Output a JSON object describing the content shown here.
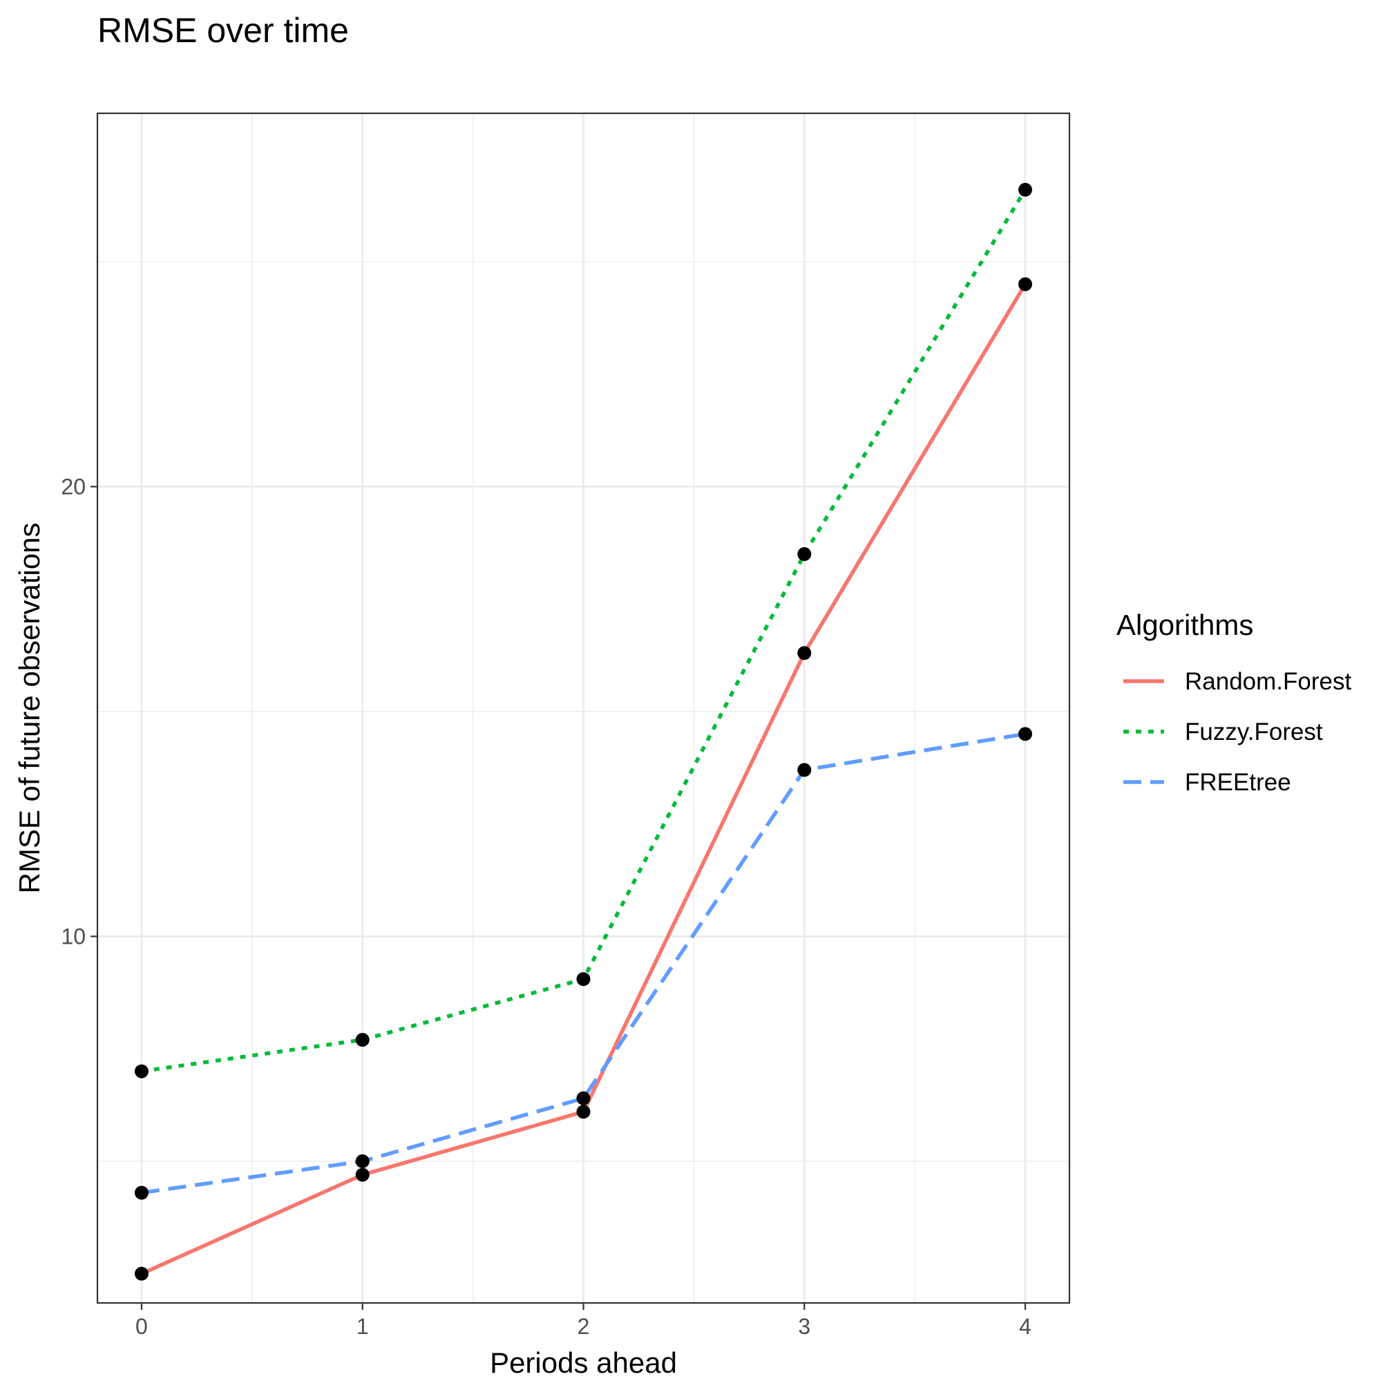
{
  "chart_data": {
    "type": "line",
    "title": "RMSE over time",
    "xlabel": "Periods ahead",
    "ylabel": "RMSE of future observations",
    "x": [
      0,
      1,
      2,
      3,
      4
    ],
    "x_tick_labels": [
      "0",
      "1",
      "2",
      "3",
      "4"
    ],
    "y_tick_labels": [
      "10",
      "20"
    ],
    "y_ticks": [
      10,
      20
    ],
    "xlim": [
      -0.2,
      4.2
    ],
    "ylim": [
      1.85,
      28.3
    ],
    "grid": true,
    "legend_title": "Algorithms",
    "legend_position": "right",
    "series": [
      {
        "name": "Random.Forest",
        "color": "#F8766D",
        "dash": "solid",
        "values": [
          2.5,
          4.7,
          6.1,
          16.3,
          24.5
        ]
      },
      {
        "name": "Fuzzy.Forest",
        "color": "#00BA38",
        "dash": "dotted",
        "values": [
          7.0,
          7.7,
          9.05,
          18.5,
          26.6
        ]
      },
      {
        "name": "FREEtree",
        "color": "#619CFF",
        "dash": "dashed",
        "values": [
          4.3,
          5.0,
          6.4,
          13.7,
          14.5
        ]
      }
    ],
    "point_color": "#000000"
  }
}
